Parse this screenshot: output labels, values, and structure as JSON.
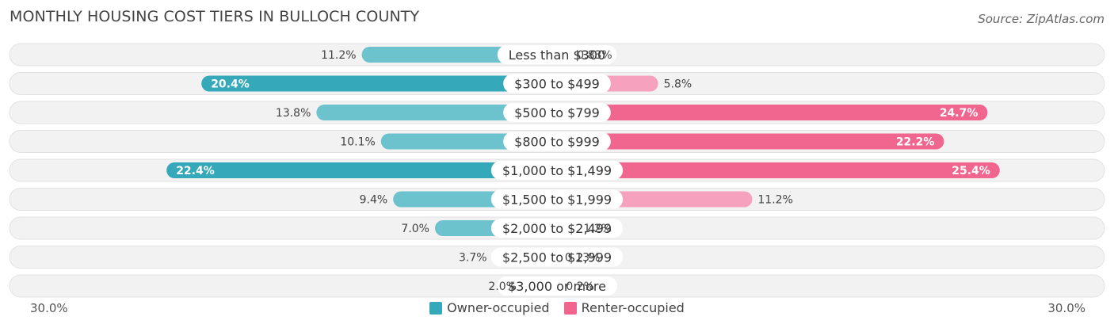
{
  "chart_data": {
    "type": "bar",
    "orientation": "horizontal-diverging",
    "title": "MONTHLY HOUSING COST TIERS IN BULLOCH COUNTY",
    "source": "Source: ZipAtlas.com",
    "categories": [
      "Less than $300",
      "$300 to $499",
      "$500 to $799",
      "$800 to $999",
      "$1,000 to $1,499",
      "$1,500 to $1,999",
      "$2,000 to $2,499",
      "$2,500 to $2,999",
      "$3,000 or more"
    ],
    "series": [
      {
        "name": "Owner-occupied",
        "values": [
          11.2,
          20.4,
          13.8,
          10.1,
          22.4,
          9.4,
          7.0,
          3.7,
          2.0
        ],
        "labels": [
          "11.2%",
          "20.4%",
          "13.8%",
          "10.1%",
          "22.4%",
          "9.4%",
          "7.0%",
          "3.7%",
          "2.0%"
        ]
      },
      {
        "name": "Renter-occupied",
        "values": [
          0.83,
          5.8,
          24.7,
          22.2,
          25.4,
          11.2,
          1.2,
          0.13,
          0.2
        ],
        "labels": [
          "0.83%",
          "5.8%",
          "24.7%",
          "22.2%",
          "25.4%",
          "11.2%",
          "1.2%",
          "0.13%",
          "0.2%"
        ]
      }
    ],
    "axis_min_label": "30.0%",
    "axis_max_label": "30.0%",
    "xlim": [
      0,
      30
    ],
    "legend_position": "bottom-center",
    "colors": {
      "owner": "#35a9b9",
      "owner_light": "#6cc2cd",
      "renter": "#f0668f",
      "renter_light": "#f6a1bd",
      "row_bg": "#f2f2f2",
      "row_border": "#e2e2e2"
    }
  }
}
